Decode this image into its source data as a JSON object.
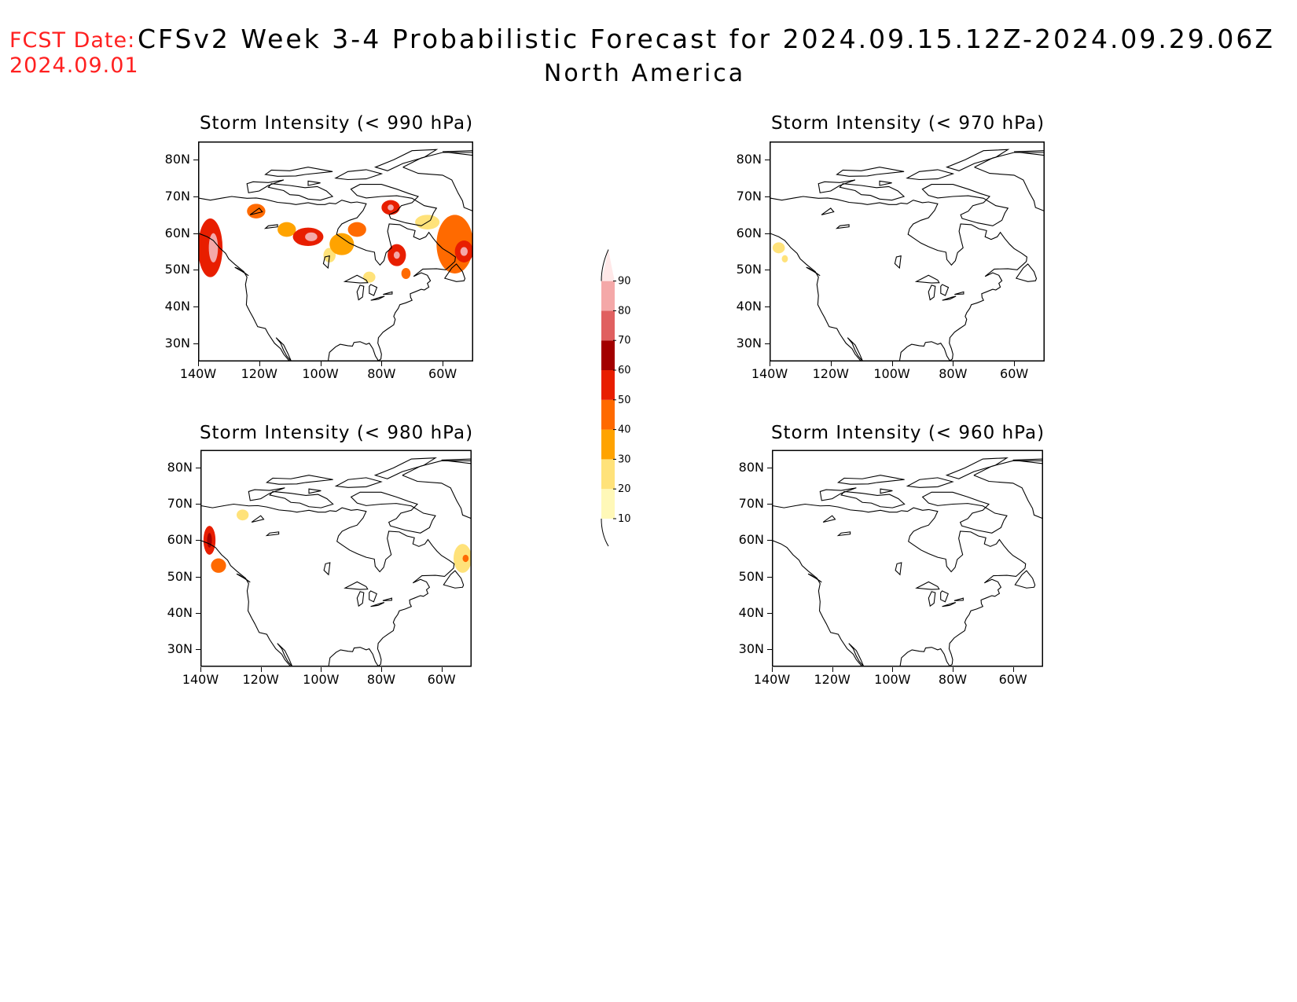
{
  "header": {
    "fcst_label": "FCST Date:",
    "fcst_date": "2024.09.01",
    "title": "CFSv2 Week 3-4 Probabilistic Forecast for 2024.09.15.12Z-2024.09.29.06Z",
    "subtitle": "North America"
  },
  "colors": {
    "c10": "#fff8b8",
    "c20": "#ffe27a",
    "c30": "#ffa300",
    "c40": "#ff6a00",
    "c50": "#e81e00",
    "c60": "#a30000",
    "c70": "#e06060",
    "c80": "#f4a8a8",
    "c90": "#ffe8e8",
    "coast": "#000000",
    "frame": "#000000"
  },
  "axes": {
    "lat_labels": [
      "80N",
      "70N",
      "60N",
      "50N",
      "40N",
      "30N"
    ],
    "lon_labels": [
      "140W",
      "120W",
      "100W",
      "80W",
      "60W"
    ],
    "lat_values": [
      80,
      70,
      60,
      50,
      40,
      30
    ],
    "lon_values": [
      -140,
      -120,
      -100,
      -80,
      -60
    ],
    "lat_range": [
      25,
      85
    ],
    "lon_range": [
      -140,
      -50
    ]
  },
  "panels": [
    {
      "id": "p990",
      "title": "Storm Intensity (< 990 hPa)",
      "blobs": [
        {
          "lon": -136,
          "lat": 56,
          "rlon": 4,
          "rlat": 8,
          "level": 50
        },
        {
          "lon": -135,
          "lat": 56,
          "rlon": 1.5,
          "rlat": 4,
          "level": 80
        },
        {
          "lon": -121,
          "lat": 66,
          "rlon": 3,
          "rlat": 2,
          "level": 40
        },
        {
          "lon": -111,
          "lat": 61,
          "rlon": 3,
          "rlat": 2,
          "level": 30
        },
        {
          "lon": -104,
          "lat": 59,
          "rlon": 5,
          "rlat": 2.5,
          "level": 50
        },
        {
          "lon": -103,
          "lat": 59,
          "rlon": 2,
          "rlat": 1.2,
          "level": 80
        },
        {
          "lon": -97,
          "lat": 54,
          "rlon": 2,
          "rlat": 2,
          "level": 20
        },
        {
          "lon": -93,
          "lat": 57,
          "rlon": 4,
          "rlat": 3,
          "level": 30
        },
        {
          "lon": -88,
          "lat": 61,
          "rlon": 3,
          "rlat": 2,
          "level": 40
        },
        {
          "lon": -77,
          "lat": 67,
          "rlon": 3,
          "rlat": 2,
          "level": 50
        },
        {
          "lon": -77,
          "lat": 67,
          "rlon": 1,
          "rlat": 0.8,
          "level": 80
        },
        {
          "lon": -75,
          "lat": 54,
          "rlon": 3,
          "rlat": 3,
          "level": 50
        },
        {
          "lon": -75,
          "lat": 54,
          "rlon": 1,
          "rlat": 1,
          "level": 80
        },
        {
          "lon": -72,
          "lat": 49,
          "rlon": 1.5,
          "rlat": 1.5,
          "level": 40
        },
        {
          "lon": -56,
          "lat": 57,
          "rlon": 6,
          "rlat": 8,
          "level": 40
        },
        {
          "lon": -53,
          "lat": 55,
          "rlon": 3,
          "rlat": 3,
          "level": 50
        },
        {
          "lon": -53,
          "lat": 55,
          "rlon": 1.2,
          "rlat": 1.2,
          "level": 80
        },
        {
          "lon": -65,
          "lat": 63,
          "rlon": 4,
          "rlat": 2,
          "level": 20
        },
        {
          "lon": -84,
          "lat": 48,
          "rlon": 2,
          "rlat": 1.5,
          "level": 20
        }
      ]
    },
    {
      "id": "p970",
      "title": "Storm Intensity (< 970 hPa)",
      "blobs": [
        {
          "lon": -137,
          "lat": 56,
          "rlon": 2,
          "rlat": 1.5,
          "level": 20
        },
        {
          "lon": -135,
          "lat": 53,
          "rlon": 1,
          "rlat": 1,
          "level": 20
        }
      ]
    },
    {
      "id": "p980",
      "title": "Storm Intensity (< 980 hPa)",
      "blobs": [
        {
          "lon": -137,
          "lat": 60,
          "rlon": 2,
          "rlat": 4,
          "level": 50
        },
        {
          "lon": -137,
          "lat": 60,
          "rlon": 0.8,
          "rlat": 2,
          "level": 60
        },
        {
          "lon": -134,
          "lat": 53,
          "rlon": 2.5,
          "rlat": 2,
          "level": 40
        },
        {
          "lon": -126,
          "lat": 67,
          "rlon": 2,
          "rlat": 1.5,
          "level": 20
        },
        {
          "lon": -53,
          "lat": 55,
          "rlon": 3,
          "rlat": 4,
          "level": 20
        },
        {
          "lon": -52,
          "lat": 55,
          "rlon": 1,
          "rlat": 1,
          "level": 40
        }
      ]
    },
    {
      "id": "p960",
      "title": "Storm Intensity (< 960 hPa)",
      "blobs": []
    }
  ],
  "colorbar": {
    "labels": [
      "10",
      "20",
      "30",
      "40",
      "50",
      "60",
      "70",
      "80",
      "90"
    ],
    "levels": [
      10,
      20,
      30,
      40,
      50,
      60,
      70,
      80,
      90
    ]
  }
}
